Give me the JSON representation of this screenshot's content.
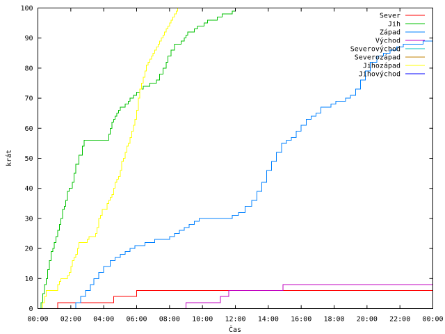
{
  "chart_data": {
    "type": "line",
    "title": "",
    "xlabel": "Čas",
    "ylabel": "krát",
    "xlim": [
      0,
      24
    ],
    "ylim": [
      0,
      100
    ],
    "x_unit": "hours",
    "x_ticks": [
      0,
      2,
      4,
      6,
      8,
      10,
      12,
      14,
      16,
      18,
      20,
      22,
      24
    ],
    "x_tick_labels": [
      "00:00",
      "02:00",
      "04:00",
      "06:00",
      "08:00",
      "10:00",
      "12:00",
      "14:00",
      "16:00",
      "18:00",
      "20:00",
      "22:00",
      "00:00"
    ],
    "y_ticks": [
      0,
      10,
      20,
      30,
      40,
      50,
      60,
      70,
      80,
      90,
      100
    ],
    "y_tick_labels": [
      "0",
      "10",
      "20",
      "30",
      "40",
      "50",
      "60",
      "70",
      "80",
      "90",
      "100"
    ],
    "grid": false,
    "legend_position": "top-right",
    "series": [
      {
        "name": "Sever",
        "color": "#ff0000",
        "x": [
          1.1,
          1.2,
          1.2,
          4.6,
          4.6,
          6.0,
          6.0,
          24.0
        ],
        "y": [
          0,
          0,
          2,
          2,
          4,
          4,
          6,
          6
        ]
      },
      {
        "name": "Jih",
        "color": "#00c000",
        "x": [
          0.1,
          0.2,
          0.3,
          0.4,
          0.5,
          0.6,
          0.7,
          0.8,
          0.9,
          1.0,
          1.1,
          1.2,
          1.3,
          1.4,
          1.5,
          1.6,
          1.7,
          1.8,
          1.9,
          2.0,
          2.1,
          2.2,
          2.3,
          2.5,
          2.7,
          2.8,
          3.0,
          3.2,
          3.4,
          3.6,
          3.8,
          3.9,
          4.0,
          4.1,
          4.2,
          4.3,
          4.4,
          4.5,
          4.6,
          4.7,
          4.8,
          4.9,
          5.0,
          5.2,
          5.3,
          5.5,
          5.6,
          5.8,
          6.0,
          6.2,
          6.4,
          6.6,
          6.8,
          7.0,
          7.2,
          7.4,
          7.6,
          7.8,
          7.9,
          8.1,
          8.3,
          8.5,
          8.7,
          8.9,
          9.0,
          9.1,
          9.3,
          9.5,
          9.7,
          9.9,
          10.1,
          10.3,
          10.6,
          10.9,
          11.2,
          11.5,
          11.8,
          12.0
        ],
        "y": [
          0,
          2,
          5,
          8,
          10,
          13,
          16,
          19,
          20,
          22,
          24,
          26,
          28,
          30,
          33,
          34,
          36,
          39,
          40,
          40,
          42,
          45,
          48,
          51,
          54,
          56,
          56,
          56,
          56,
          56,
          56,
          56,
          56,
          56,
          56,
          58,
          60,
          62,
          63,
          64,
          65,
          66,
          67,
          67,
          68,
          69,
          70,
          71,
          72,
          73,
          74,
          74,
          75,
          75,
          76,
          78,
          80,
          82,
          84,
          86,
          88,
          88,
          89,
          90,
          91,
          92,
          92,
          93,
          94,
          94,
          95,
          96,
          96,
          97,
          98,
          98,
          99,
          100
        ]
      },
      {
        "name": "Západ",
        "color": "#0080ff",
        "x": [
          2.1,
          2.3,
          2.6,
          2.9,
          3.2,
          3.4,
          3.7,
          4.0,
          4.4,
          4.7,
          5.0,
          5.3,
          5.6,
          5.9,
          6.2,
          6.5,
          6.8,
          7.1,
          7.4,
          7.7,
          8.0,
          8.3,
          8.6,
          8.9,
          9.2,
          9.5,
          9.8,
          10.2,
          10.6,
          11.0,
          11.4,
          11.8,
          12.2,
          12.6,
          13.0,
          13.3,
          13.6,
          13.9,
          14.2,
          14.5,
          14.8,
          15.1,
          15.4,
          15.7,
          16.0,
          16.3,
          16.6,
          16.9,
          17.2,
          17.5,
          17.8,
          18.1,
          18.4,
          18.7,
          19.0,
          19.3,
          19.6,
          19.9,
          20.2,
          20.6,
          21.0,
          21.4,
          21.8,
          22.2,
          22.6,
          23.0,
          23.4,
          23.8,
          24.0
        ],
        "y": [
          0,
          2,
          4,
          6,
          8,
          10,
          12,
          14,
          16,
          17,
          18,
          19,
          20,
          21,
          21,
          22,
          22,
          23,
          23,
          23,
          24,
          25,
          26,
          27,
          28,
          29,
          30,
          30,
          30,
          30,
          30,
          31,
          32,
          34,
          36,
          39,
          42,
          46,
          49,
          52,
          55,
          56,
          57,
          59,
          61,
          63,
          64,
          65,
          67,
          67,
          68,
          69,
          69,
          70,
          71,
          73,
          76,
          79,
          82,
          84,
          85,
          86,
          87,
          88,
          88,
          88,
          89,
          89,
          89
        ]
      },
      {
        "name": "Východ",
        "color": "#c000c0",
        "x": [
          8.8,
          9.0,
          9.0,
          11.1,
          11.1,
          11.6,
          11.6,
          14.9,
          14.9,
          24.0
        ],
        "y": [
          0,
          0,
          2,
          2,
          4,
          4,
          6,
          6,
          8,
          8
        ]
      },
      {
        "name": "Severovýchod",
        "color": "#00c0c0",
        "x": [],
        "y": []
      },
      {
        "name": "Severozápad",
        "color": "#c08000",
        "x": [],
        "y": []
      },
      {
        "name": "Jihozápad",
        "color": "#ffff00",
        "x": [
          0.2,
          0.3,
          0.4,
          0.5,
          0.6,
          0.7,
          0.8,
          0.9,
          1.0,
          1.1,
          1.2,
          1.3,
          1.4,
          1.5,
          1.6,
          1.7,
          1.8,
          1.9,
          2.0,
          2.1,
          2.2,
          2.3,
          2.4,
          2.5,
          2.6,
          2.7,
          2.8,
          2.9,
          3.0,
          3.1,
          3.2,
          3.3,
          3.4,
          3.5,
          3.6,
          3.7,
          3.8,
          3.9,
          4.0,
          4.1,
          4.2,
          4.3,
          4.4,
          4.5,
          4.6,
          4.7,
          4.8,
          4.9,
          5.0,
          5.1,
          5.2,
          5.3,
          5.4,
          5.5,
          5.6,
          5.7,
          5.8,
          5.9,
          6.0,
          6.1,
          6.2,
          6.3,
          6.4,
          6.5,
          6.6,
          6.7,
          6.8,
          6.9,
          7.0,
          7.1,
          7.2,
          7.3,
          7.4,
          7.5,
          7.6,
          7.7,
          7.8,
          7.9,
          8.0,
          8.1,
          8.2,
          8.3,
          8.4,
          8.5,
          8.6,
          8.7,
          8.8,
          8.9,
          9.0,
          9.1,
          9.2,
          9.3,
          9.4,
          9.5,
          9.6,
          9.7
        ],
        "y": [
          0,
          2,
          4,
          6,
          6,
          6,
          6,
          6,
          6,
          6,
          8,
          9,
          10,
          10,
          10,
          10,
          11,
          12,
          14,
          16,
          17,
          18,
          20,
          22,
          22,
          22,
          22,
          22,
          23,
          24,
          24,
          24,
          24,
          25,
          27,
          30,
          31,
          33,
          33,
          33,
          35,
          36,
          37,
          38,
          40,
          42,
          43,
          44,
          46,
          49,
          50,
          52,
          54,
          55,
          57,
          59,
          61,
          63,
          66,
          70,
          73,
          75,
          77,
          79,
          81,
          82,
          83,
          84,
          85,
          86,
          87,
          88,
          89,
          90,
          91,
          92,
          93,
          94,
          95,
          96,
          97,
          98,
          99,
          100,
          100,
          100,
          100,
          100,
          100,
          100,
          100,
          100,
          100,
          100,
          100,
          100
        ]
      },
      {
        "name": "Jihovýchod",
        "color": "#0000ff",
        "x": [],
        "y": []
      }
    ]
  }
}
